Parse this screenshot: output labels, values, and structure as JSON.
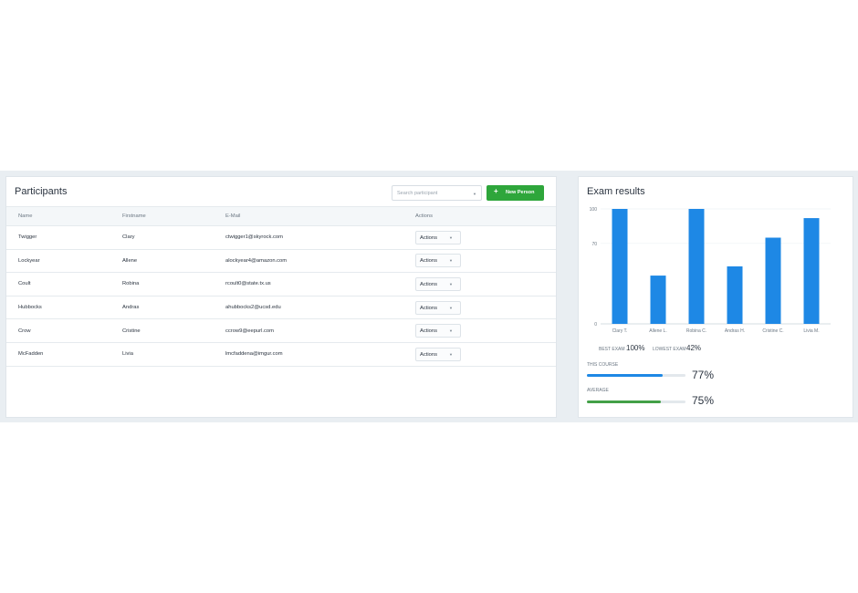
{
  "participants": {
    "title": "Participants",
    "search_placeholder": "Search participant",
    "new_button": "New Person",
    "columns": [
      "Name",
      "Firstname",
      "E-Mail",
      "Actions"
    ],
    "rows": [
      {
        "name": "Twigger",
        "first": "Clary",
        "email": "ctwigger1@skyrock.com",
        "action": "Actions"
      },
      {
        "name": "Lockyear",
        "first": "Allene",
        "email": "alockyear4@amazon.com",
        "action": "Actions"
      },
      {
        "name": "Coult",
        "first": "Robina",
        "email": "rcoult0@state.tx.us",
        "action": "Actions"
      },
      {
        "name": "Hubbocks",
        "first": "Andras",
        "email": "ahubbocks2@ucsd.edu",
        "action": "Actions"
      },
      {
        "name": "Crow",
        "first": "Cristine",
        "email": "ccrow9@eepurl.com",
        "action": "Actions"
      },
      {
        "name": "McFadden",
        "first": "Livia",
        "email": "lmcfaddena@imgur.com",
        "action": "Actions"
      }
    ]
  },
  "exam": {
    "title": "Exam results",
    "best_label": "BEST EXAM",
    "best_value": "100%",
    "lowest_label": "LOWEST EXAM",
    "lowest_value": "42%",
    "course_label": "THIS COURSE",
    "course_value": "77%",
    "course_fraction": 0.77,
    "average_label": "AVERAGE",
    "average_value": "75%",
    "average_fraction": 0.75
  },
  "colors": {
    "accent": "#2ea63b",
    "bar": "#1e88e5",
    "course": "#1e88e5",
    "average": "#43a047"
  },
  "chart_data": {
    "type": "bar",
    "categories": [
      "Clary T.",
      "Allene L.",
      "Robina C.",
      "Andras H.",
      "Cristine C.",
      "Livia M."
    ],
    "values": [
      100,
      42,
      100,
      50,
      75,
      92
    ],
    "yticks": [
      0,
      70,
      100
    ],
    "ylim": [
      0,
      100
    ],
    "grid": true
  }
}
